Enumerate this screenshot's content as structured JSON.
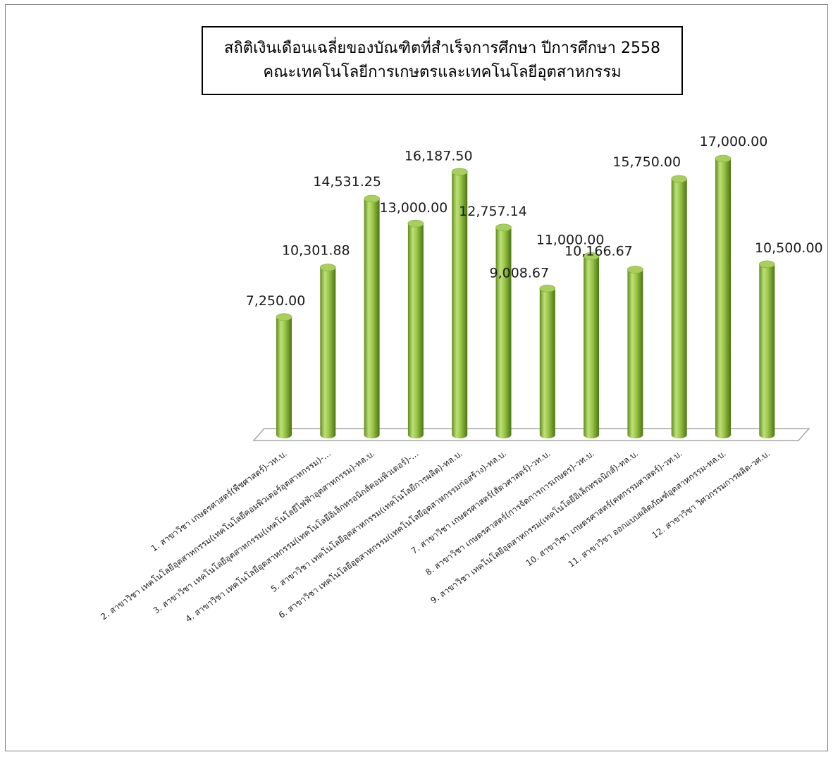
{
  "chart_data": {
    "type": "bar",
    "title_lines": [
      "สถิติเงินเดือนเฉลี่ยของบัณฑิตที่สำเร็จการศึกษา  ปีการศึกษา 2558",
      "คณะเทคโนโลยีการเกษตรและเทคโนโลยีอุตสาหกรรม"
    ],
    "categories": [
      "1. สาขาวิชา เกษตรศาสตร์(พืชศาสตร์)-วท.บ.",
      "2. สาขาวิชา เทคโนโลยีอุตสาหกรรม(เทคโนโลยีคอมพิวเตอร์อุตสาหกรรม)-…",
      "3. สาขาวิชา เทคโนโลยีอุตสาหกรรม(เทคโนโลยีไฟฟ้าอุตสาหกรรม)-ทล.บ.",
      "4. สาขาวิชา เทคโนโลยีอุตสาหกรรม(เทคโนโลยีอิเล็กทรอนิกส์คอมพิวเตอร์)-…",
      "5. สาขาวิชา เทคโนโลยีอุตสาหกรรม(เทคโนโลยีการผลิต)-ทล.บ.",
      "6. สาขาวิชา เทคโนโลยีอุตสาหกรรม(เทคโนโลยีอุตสาหกรรมก่อสร้าง)-ทล.บ.",
      "7. สาขาวิชา เกษตรศาสตร์(สัตวศาสตร์)-วท.บ.",
      "8. สาขาวิชา เกษตรศาสตร์(การจัดการการเกษตร)-วท.บ.",
      "9. สาขาวิชา เทคโนโลยีอุตสาหกรรม(เทคโนโลยีอิเล็กทรอนิกส์)-ทล.บ.",
      "10. สาขาวิชา เกษตรศาสตร์(คหกรรมศาสตร์)-วท.บ.",
      "11. สาขาวิชา ออกแบบผลิตภัณฑ์อุตสาหกรรม-ทล.บ.",
      "12. สาขาวิชา วิศวกรรมการผลิต-วศ.บ."
    ],
    "values": [
      7250.0,
      10301.88,
      14531.25,
      13000.0,
      16187.5,
      12757.14,
      9008.67,
      11000.0,
      10166.67,
      15750.0,
      17000.0,
      10500.0
    ],
    "value_labels": [
      "7,250.00",
      "10,301.88",
      "14,531.25",
      "13,000.00",
      "16,187.50",
      "12,757.14",
      "9,008.67",
      "11,000.00",
      "10,166.67",
      "15,750.00",
      "17,000.00",
      "10,500.00"
    ],
    "ylim": [
      0,
      17000
    ],
    "grid": false,
    "legend": "none",
    "style": "3d-cylinder",
    "colors": {
      "bar_light": "#c6e08a",
      "bar_mid": "#92c13f",
      "bar_dark": "#4f7a16",
      "bar_top": "#a8cf5e",
      "floor": "#d9d9d9",
      "frame_border": "#7f7f7f"
    }
  }
}
